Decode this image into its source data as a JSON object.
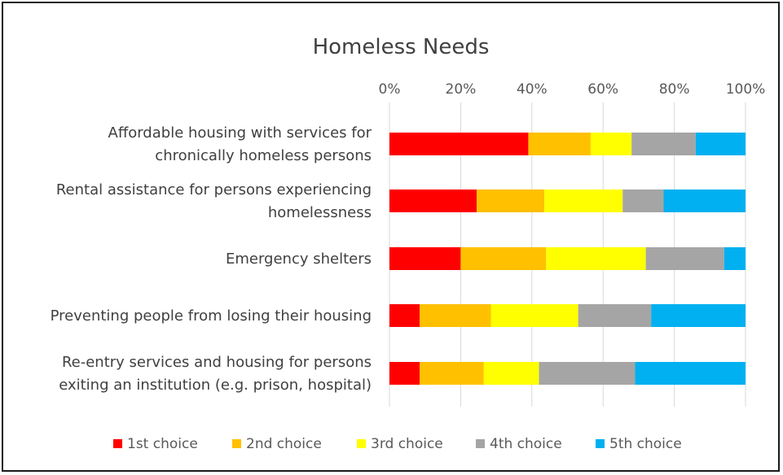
{
  "chart_data": {
    "type": "bar",
    "orientation": "horizontal",
    "stacked": "percent",
    "title": "Homeless  Needs",
    "x_ticks": [
      "0%",
      "20%",
      "40%",
      "60%",
      "80%",
      "100%"
    ],
    "xlim": [
      0,
      100
    ],
    "x_axis_position": "top",
    "grid": true,
    "legend_position": "bottom",
    "categories": [
      [
        "Affordable housing with services for",
        "chronically homeless persons"
      ],
      [
        "Rental assistance for persons experiencing",
        "homelessness"
      ],
      [
        "Emergency shelters"
      ],
      [
        "Preventing people from losing their housing"
      ],
      [
        "Re-entry services and housing for persons",
        "exiting an institution (e.g. prison, hospital)"
      ]
    ],
    "series": [
      {
        "name": "1st choice",
        "color": "#ff0000",
        "values": [
          39,
          24.5,
          20,
          8.5,
          8.5
        ]
      },
      {
        "name": "2nd choice",
        "color": "#ffc000",
        "values": [
          17.5,
          19,
          24,
          20,
          18
        ]
      },
      {
        "name": "3rd choice",
        "color": "#ffff00",
        "values": [
          11.5,
          22,
          28,
          24.5,
          15.5
        ]
      },
      {
        "name": "4th choice",
        "color": "#a5a5a5",
        "values": [
          18,
          11.5,
          22,
          20.5,
          27
        ]
      },
      {
        "name": "5th choice",
        "color": "#00b0f0",
        "values": [
          14,
          23,
          6,
          26.5,
          31
        ]
      }
    ]
  }
}
